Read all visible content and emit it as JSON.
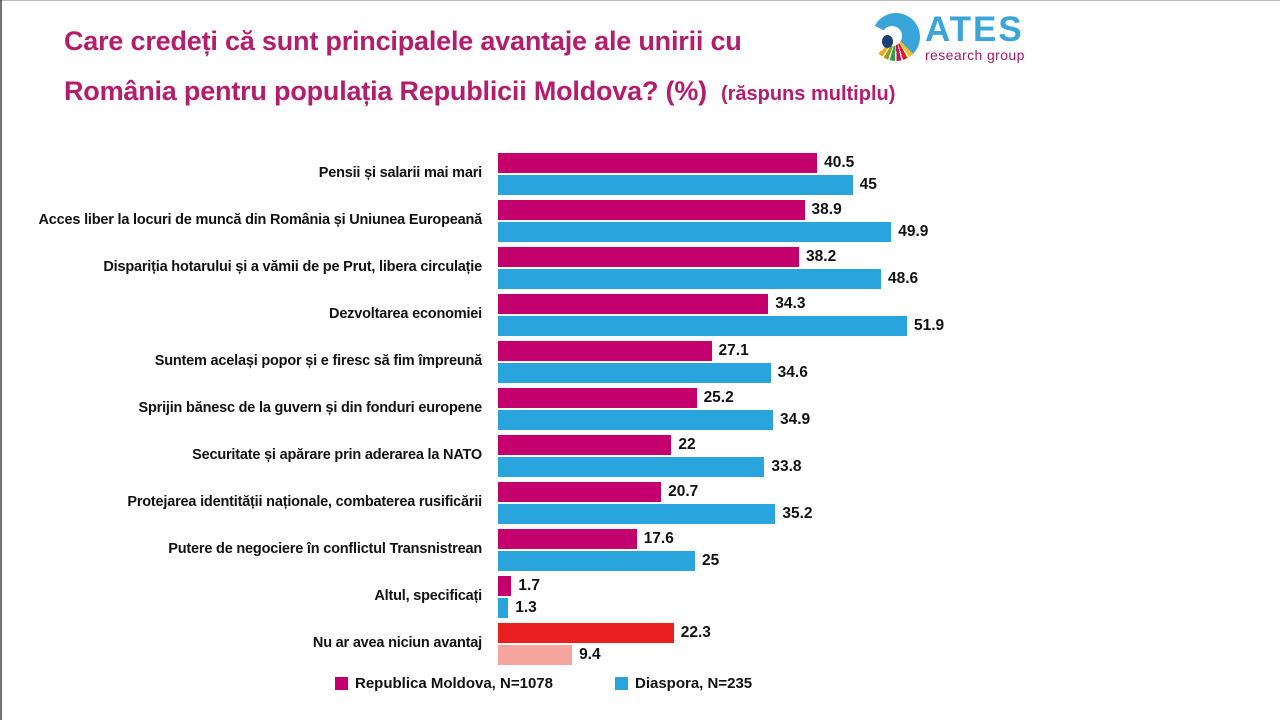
{
  "title": {
    "line1": "Care credeți că sunt principalele avantaje ale unirii cu",
    "line2": "România pentru populația Republicii Moldova? (%)",
    "note": "(răspuns multiplu)"
  },
  "logo": {
    "name": "ATES",
    "subtitle": "research group",
    "icon": "ates-segmented-ring-icon",
    "name_color": "#3aa5d9",
    "subtitle_color": "#a9186c"
  },
  "colors": {
    "title_magenta": "#b41d6e",
    "bar_moldova": "#c4006e",
    "bar_diaspora": "#2aa4dc",
    "bar_moldova_no_advantage": "#ea1f1f",
    "bar_diaspora_no_advantage": "#f5a49e",
    "label_text": "#121212"
  },
  "chart_data": {
    "type": "bar",
    "orientation": "horizontal",
    "title": "Care credeți că sunt principalele avantaje ale unirii cu România pentru populația Republicii Moldova? (%)",
    "subtitle": "(răspuns multiplu)",
    "categories": [
      "Pensii și salarii mai mari",
      "Acces liber la locuri de muncă din România și Uniunea Europeană",
      "Dispariția hotarului și a vămii de pe Prut, libera circulație",
      "Dezvoltarea economiei",
      "Suntem același popor și e firesc să fim împreună",
      "Sprijin bănesc de la guvern și din fonduri europene",
      "Securitate și apărare prin aderarea la NATO",
      "Protejarea identității naționale, combaterea rusificării",
      "Putere de negociere în conflictul Transnistrean",
      "Altul, specificați",
      "Nu ar avea niciun avantaj"
    ],
    "series": [
      {
        "name": "Republica Moldova, N=1078",
        "color": "#c4006e",
        "negative_color": "#ea1f1f",
        "values": [
          40.5,
          38.9,
          38.2,
          34.3,
          27.1,
          25.2,
          22,
          20.7,
          17.6,
          1.7,
          22.3
        ]
      },
      {
        "name": "Diaspora, N=235",
        "color": "#2aa4dc",
        "negative_color": "#f5a49e",
        "values": [
          45,
          49.9,
          48.6,
          51.9,
          34.6,
          34.9,
          33.8,
          35.2,
          25,
          1.3,
          9.4
        ]
      }
    ],
    "negative_category": "Nu ar avea niciun avantaj",
    "xlim": [
      0,
      55
    ],
    "grid": false,
    "value_labels": true,
    "legend_position": "bottom"
  },
  "legend": [
    {
      "label": "Republica Moldova, N=1078",
      "color": "#c4006e"
    },
    {
      "label": "Diaspora, N=235",
      "color": "#2aa4dc"
    }
  ]
}
